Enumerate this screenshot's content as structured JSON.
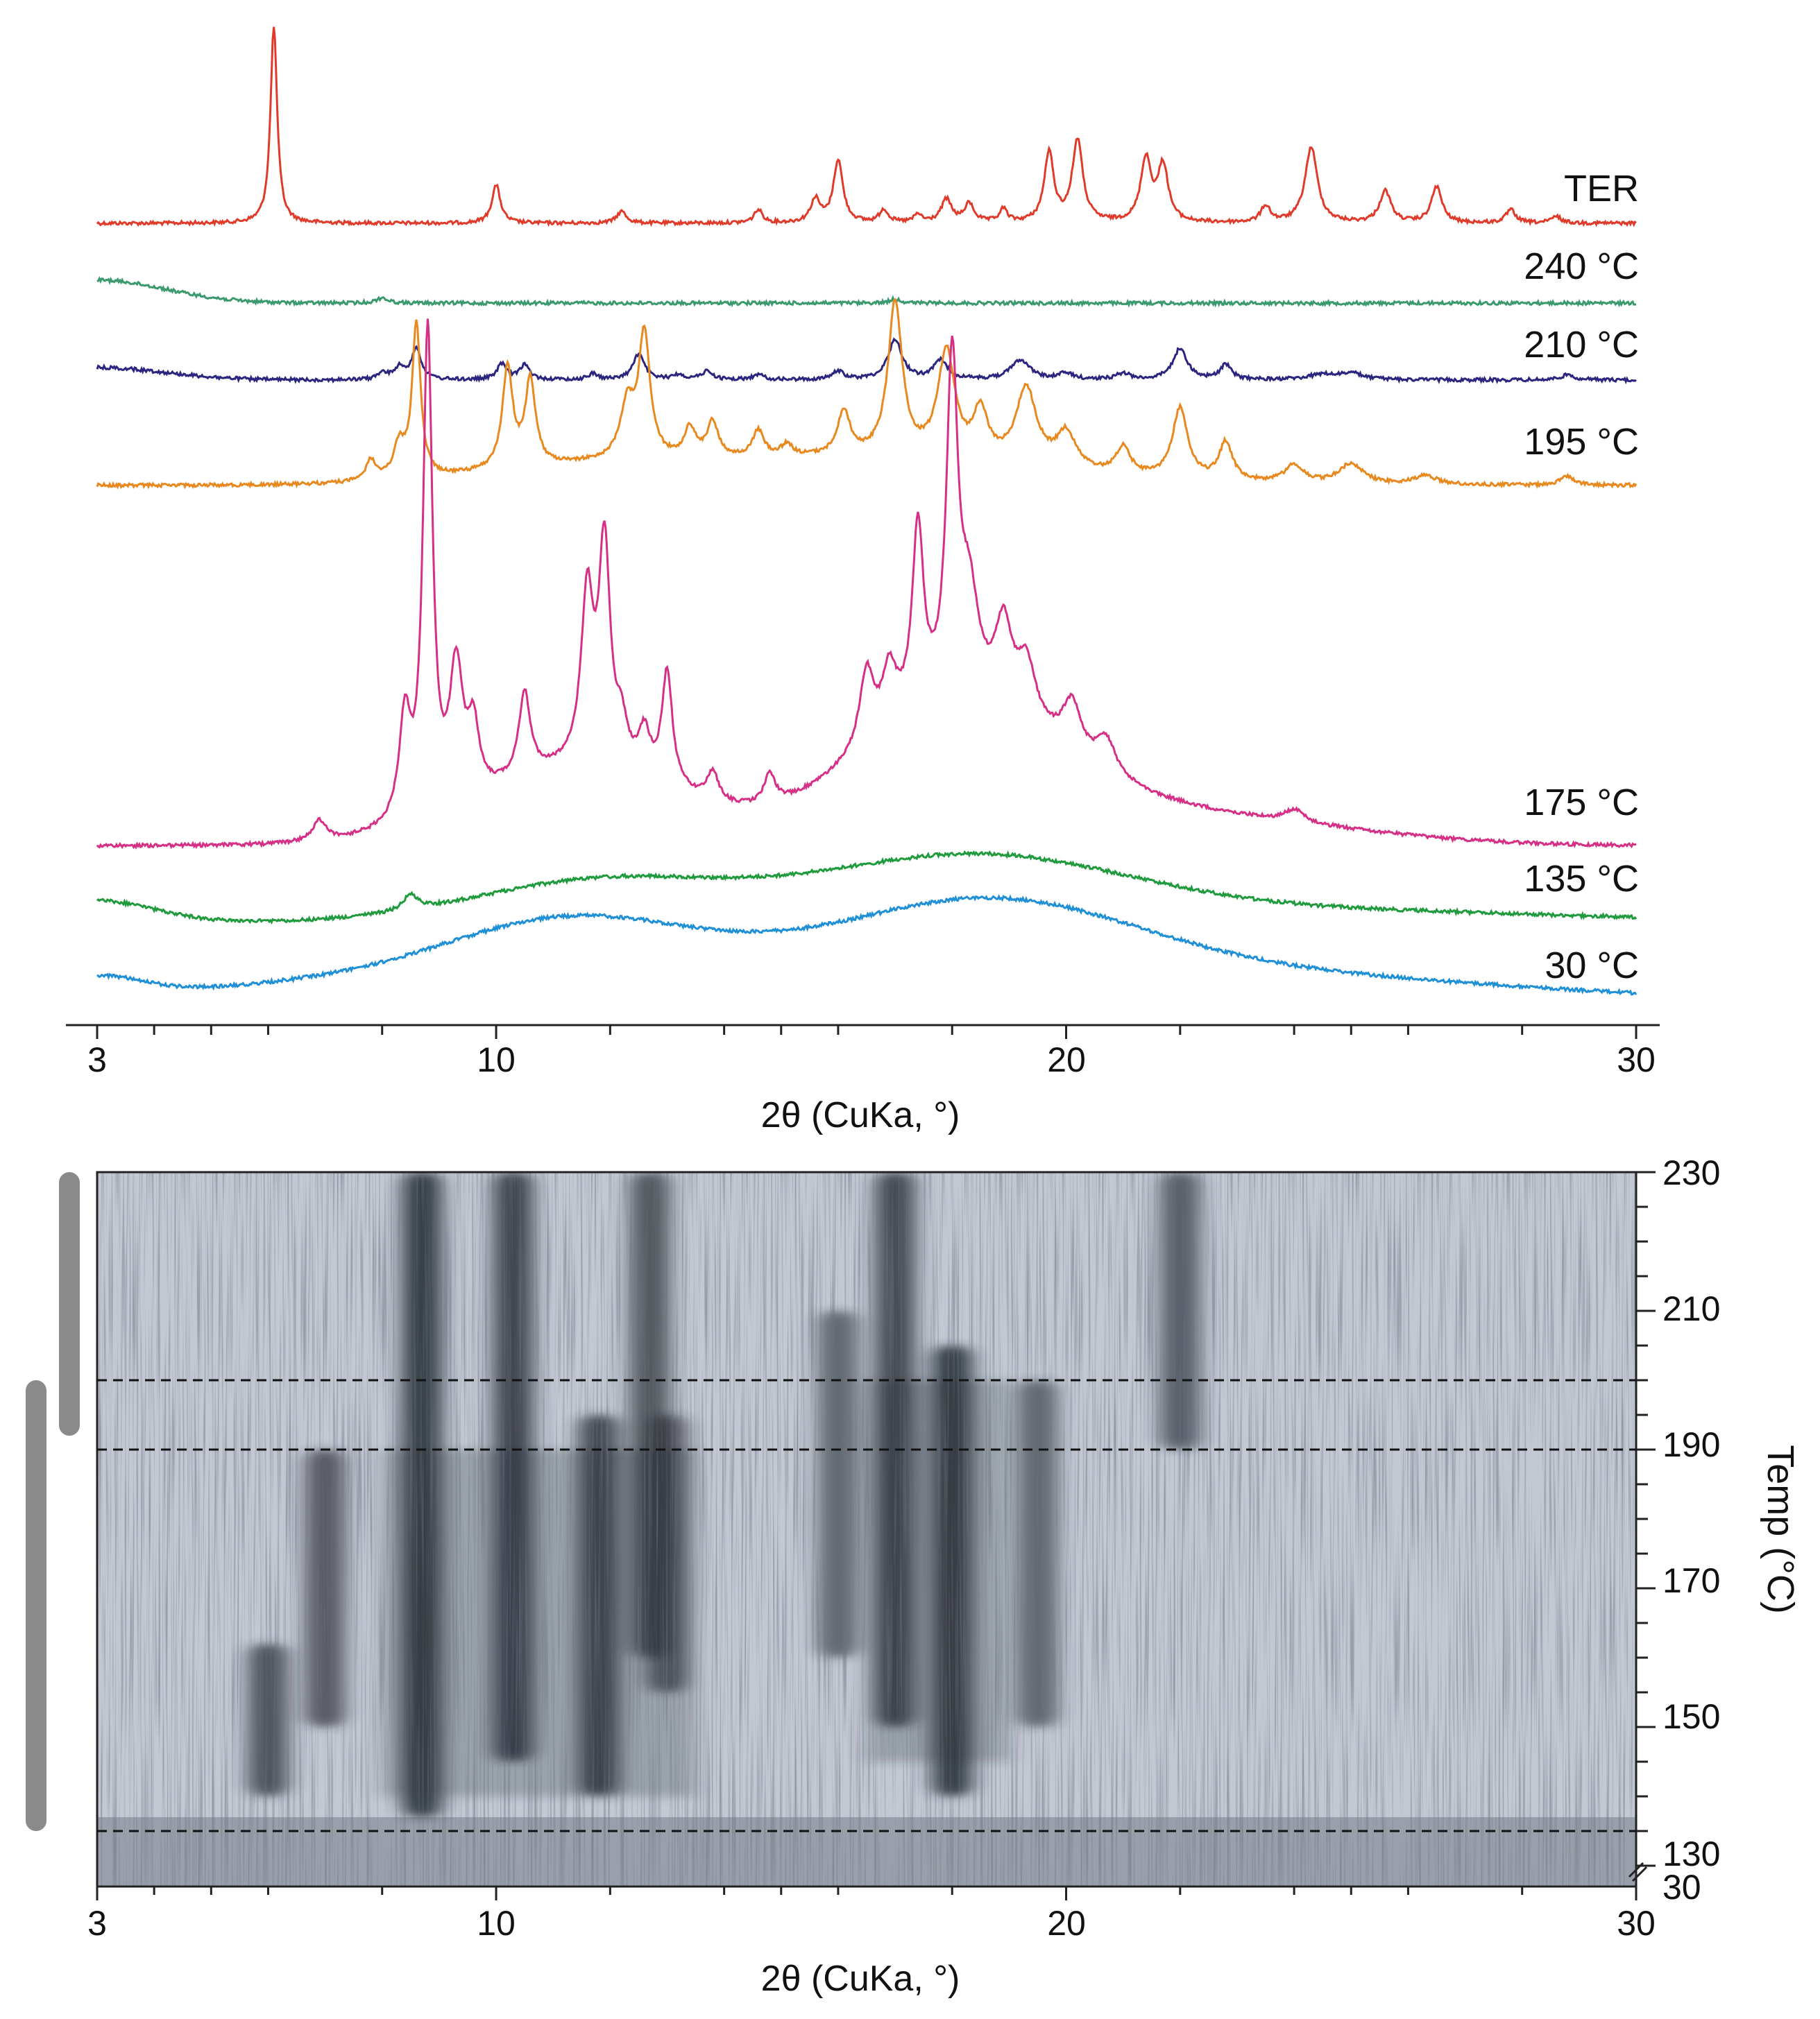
{
  "chart_data": [
    {
      "type": "line",
      "xlabel": "2θ (CuKa, °)",
      "xlim": [
        3,
        30
      ],
      "x_ticks": [
        "3",
        "10",
        "20",
        "30"
      ],
      "grid": false,
      "legend": "inline labels at right end of each trace",
      "series": [
        {
          "name": "TER",
          "color": "#e03a2a",
          "baseline": 0.0,
          "peaks": [
            [
              6.1,
              3.0,
              0.07
            ],
            [
              10.0,
              0.58,
              0.09
            ],
            [
              12.2,
              0.18,
              0.1
            ],
            [
              14.6,
              0.2,
              0.09
            ],
            [
              15.6,
              0.35,
              0.1
            ],
            [
              16.0,
              0.95,
              0.1
            ],
            [
              16.8,
              0.2,
              0.09
            ],
            [
              17.4,
              0.12,
              0.08
            ],
            [
              17.9,
              0.35,
              0.11
            ],
            [
              18.3,
              0.28,
              0.1
            ],
            [
              18.9,
              0.2,
              0.08
            ],
            [
              19.7,
              1.05,
              0.1
            ],
            [
              20.2,
              1.25,
              0.11
            ],
            [
              21.4,
              0.95,
              0.11
            ],
            [
              21.7,
              0.85,
              0.11
            ],
            [
              23.5,
              0.25,
              0.1
            ],
            [
              24.3,
              1.15,
              0.13
            ],
            [
              25.6,
              0.48,
              0.12
            ],
            [
              26.5,
              0.55,
              0.11
            ],
            [
              27.8,
              0.2,
              0.1
            ],
            [
              28.6,
              0.1,
              0.1
            ]
          ],
          "humps": []
        },
        {
          "name": "240 °C",
          "color": "#3a9a6e",
          "baseline": 0.0,
          "peaks": [
            [
              8.0,
              0.08,
              0.12
            ],
            [
              17.0,
              0.06,
              0.12
            ]
          ],
          "humps": [
            [
              3.0,
              0.35,
              1.2
            ]
          ]
        },
        {
          "name": "210 °C",
          "color": "#2b2580",
          "baseline": 0.0,
          "peaks": [
            [
              8.0,
              0.15,
              0.1
            ],
            [
              8.3,
              0.28,
              0.12
            ],
            [
              8.6,
              0.75,
              0.1
            ],
            [
              10.1,
              0.38,
              0.1
            ],
            [
              10.5,
              0.36,
              0.1
            ],
            [
              11.7,
              0.15,
              0.1
            ],
            [
              12.5,
              0.62,
              0.12
            ],
            [
              13.2,
              0.12,
              0.12
            ],
            [
              13.7,
              0.2,
              0.12
            ],
            [
              14.6,
              0.12,
              0.12
            ],
            [
              16.0,
              0.2,
              0.12
            ],
            [
              17.0,
              0.95,
              0.15
            ],
            [
              17.8,
              0.45,
              0.15
            ],
            [
              19.2,
              0.48,
              0.2
            ],
            [
              20.0,
              0.15,
              0.15
            ],
            [
              21.0,
              0.15,
              0.15
            ],
            [
              22.0,
              0.75,
              0.15
            ],
            [
              22.8,
              0.35,
              0.12
            ],
            [
              24.5,
              0.12,
              0.3
            ],
            [
              25.0,
              0.15,
              0.25
            ],
            [
              28.8,
              0.12,
              0.15
            ]
          ],
          "humps": [
            [
              3.0,
              0.3,
              1.2
            ]
          ]
        },
        {
          "name": "195 °C",
          "color": "#e8891f",
          "baseline": 0.0,
          "peaks": [
            [
              7.8,
              0.35,
              0.1
            ],
            [
              8.3,
              0.55,
              0.12
            ],
            [
              8.6,
              2.6,
              0.09
            ],
            [
              10.2,
              1.7,
              0.11
            ],
            [
              10.6,
              1.45,
              0.11
            ],
            [
              12.3,
              0.9,
              0.15
            ],
            [
              12.6,
              2.1,
              0.12
            ],
            [
              13.4,
              0.5,
              0.12
            ],
            [
              13.8,
              0.6,
              0.12
            ],
            [
              14.6,
              0.45,
              0.12
            ],
            [
              15.1,
              0.2,
              0.12
            ],
            [
              16.1,
              0.75,
              0.13
            ],
            [
              17.0,
              2.6,
              0.15
            ],
            [
              17.9,
              1.8,
              0.18
            ],
            [
              18.5,
              0.8,
              0.15
            ],
            [
              19.3,
              1.3,
              0.22
            ],
            [
              20.0,
              0.6,
              0.2
            ],
            [
              21.0,
              0.45,
              0.15
            ],
            [
              22.0,
              1.2,
              0.16
            ],
            [
              22.8,
              0.65,
              0.14
            ],
            [
              24.0,
              0.3,
              0.2
            ],
            [
              25.0,
              0.35,
              0.25
            ],
            [
              26.3,
              0.15,
              0.25
            ],
            [
              28.8,
              0.15,
              0.15
            ]
          ],
          "humps": [
            [
              16.5,
              0.45,
              3.0
            ],
            [
              11.5,
              0.25,
              2.0
            ],
            [
              3.0,
              0.0,
              1.0
            ]
          ]
        },
        {
          "name": "175 °C",
          "color": "#d62f86",
          "baseline": 0.0,
          "peaks": [
            [
              6.9,
              0.25,
              0.15
            ],
            [
              8.4,
              1.2,
              0.12
            ],
            [
              8.8,
              5.8,
              0.1
            ],
            [
              9.3,
              1.6,
              0.14
            ],
            [
              9.6,
              0.8,
              0.12
            ],
            [
              10.5,
              1.0,
              0.12
            ],
            [
              11.6,
              2.0,
              0.13
            ],
            [
              11.9,
              2.6,
              0.12
            ],
            [
              12.2,
              0.45,
              0.12
            ],
            [
              12.6,
              0.5,
              0.12
            ],
            [
              13.0,
              1.35,
              0.11
            ],
            [
              13.8,
              0.35,
              0.12
            ],
            [
              14.8,
              0.35,
              0.12
            ],
            [
              16.5,
              0.9,
              0.15
            ],
            [
              16.9,
              0.7,
              0.15
            ],
            [
              17.4,
              2.2,
              0.12
            ],
            [
              18.0,
              4.0,
              0.12
            ],
            [
              18.3,
              1.2,
              0.2
            ],
            [
              18.9,
              1.0,
              0.18
            ],
            [
              19.3,
              0.7,
              0.2
            ],
            [
              20.1,
              0.6,
              0.2
            ],
            [
              20.7,
              0.4,
              0.2
            ],
            [
              24.0,
              0.15,
              0.2
            ]
          ],
          "humps": [
            [
              18.0,
              1.4,
              1.8
            ],
            [
              11.5,
              0.9,
              1.8
            ],
            [
              21.5,
              0.4,
              3.0
            ]
          ]
        },
        {
          "name": "135 °C",
          "color": "#1f9a3c",
          "baseline": 0.0,
          "peaks": [
            [
              8.5,
              0.25,
              0.15
            ]
          ],
          "humps": [
            [
              11.8,
              0.65,
              2.2
            ],
            [
              18.3,
              1.05,
              2.8
            ],
            [
              25.0,
              0.18,
              4.0
            ],
            [
              3.0,
              0.35,
              1.0
            ]
          ]
        },
        {
          "name": "30 °C",
          "color": "#1f8fd6",
          "baseline": 0.0,
          "peaks": [],
          "humps": [
            [
              11.3,
              1.2,
              2.4
            ],
            [
              18.5,
              1.45,
              2.8
            ],
            [
              24.5,
              0.3,
              3.5
            ],
            [
              6.0,
              0.15,
              2.0
            ],
            [
              3.0,
              0.3,
              0.8
            ]
          ]
        }
      ]
    },
    {
      "type": "heatmap",
      "xlabel": "2θ (CuKa, °)",
      "ylabel": "Temp (°C)",
      "xlim": [
        3,
        30
      ],
      "x_ticks": [
        "3",
        "10",
        "20",
        "30"
      ],
      "ylim": [
        130,
        230
      ],
      "y_ticks": [
        "130",
        "150",
        "170",
        "190",
        "210",
        "230"
      ],
      "y_axis_break_label": "30",
      "dashed_lines_temp": [
        200,
        190,
        135
      ],
      "colormap": [
        "#c4c9d4",
        "#262b34"
      ],
      "intense_bands": [
        {
          "x": 6.0,
          "t_min": 140,
          "t_max": 162,
          "strength": 0.75
        },
        {
          "x": 7.0,
          "t_min": 150,
          "t_max": 190,
          "strength": 0.65
        },
        {
          "x": 8.7,
          "t_min": 137,
          "t_max": 230,
          "strength": 1.0
        },
        {
          "x": 10.3,
          "t_min": 145,
          "t_max": 230,
          "strength": 0.9
        },
        {
          "x": 11.8,
          "t_min": 140,
          "t_max": 195,
          "strength": 0.85
        },
        {
          "x": 12.7,
          "t_min": 160,
          "t_max": 230,
          "strength": 0.7
        },
        {
          "x": 13.0,
          "t_min": 155,
          "t_max": 195,
          "strength": 0.65
        },
        {
          "x": 17.0,
          "t_min": 150,
          "t_max": 230,
          "strength": 0.85
        },
        {
          "x": 18.0,
          "t_min": 140,
          "t_max": 205,
          "strength": 1.0
        },
        {
          "x": 22.0,
          "t_min": 190,
          "t_max": 230,
          "strength": 0.6
        },
        {
          "x": 16.0,
          "t_min": 160,
          "t_max": 210,
          "strength": 0.5
        },
        {
          "x": 19.5,
          "t_min": 150,
          "t_max": 200,
          "strength": 0.5
        }
      ]
    }
  ],
  "side_bars": {
    "color": "#8a8a8a",
    "bars": [
      {
        "t_min": 192,
        "t_max": 230
      },
      {
        "t_min": 128,
        "t_max": 200
      }
    ]
  }
}
